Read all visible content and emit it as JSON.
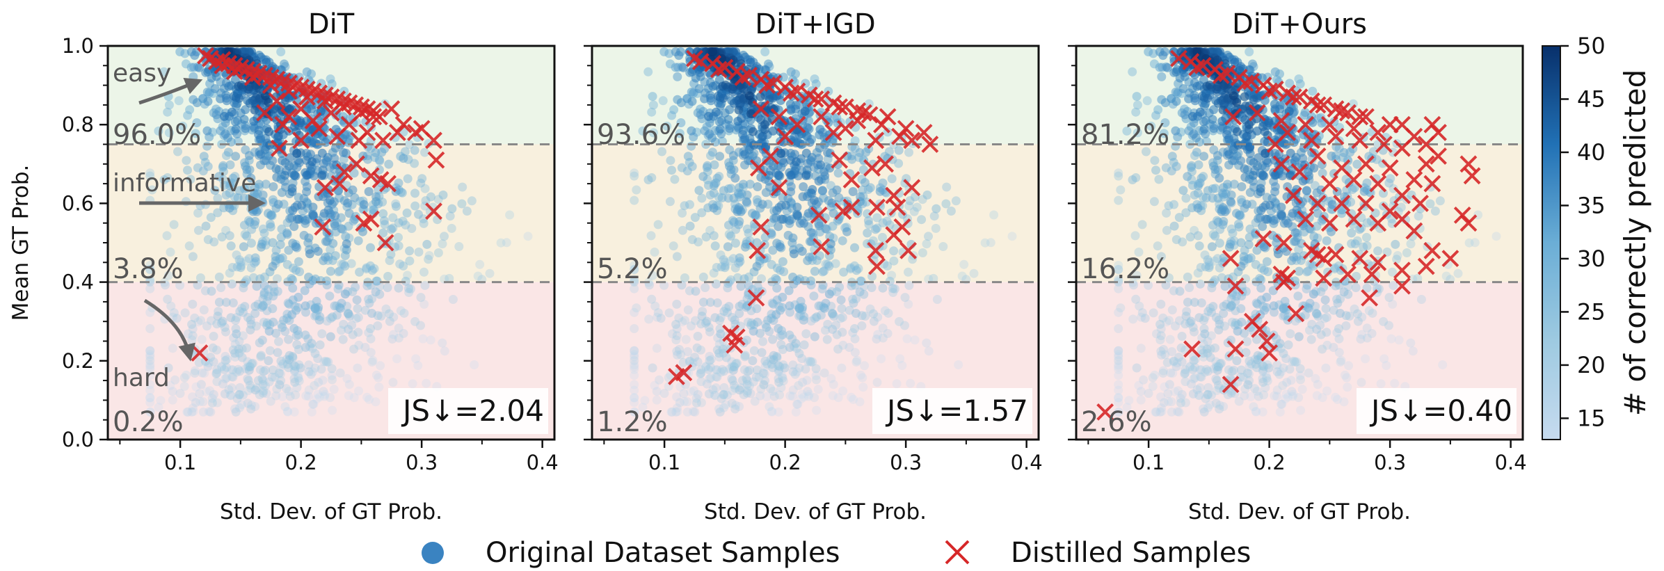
{
  "chart_data": {
    "type": "scatter",
    "panels": [
      {
        "title": "DiT",
        "xlabel": "Std. Dev. of GT Prob.",
        "ylabel": "Mean GT Prob.",
        "xlim": [
          0.04,
          0.41
        ],
        "ylim": [
          0.0,
          1.0
        ],
        "xticks": [
          "0.1",
          "0.2",
          "0.3",
          "0.4"
        ],
        "yticks": [
          "0.0",
          "0.2",
          "0.4",
          "0.6",
          "0.8",
          "1.0"
        ],
        "thresholds": [
          0.4,
          0.75
        ],
        "region_labels": {
          "easy": "easy",
          "informative": "informative",
          "hard": "hard"
        },
        "percentages": {
          "easy": "96.0%",
          "informative": "3.8%",
          "hard": "0.2%"
        },
        "js_label": "JS↓=2.04",
        "distilled_points": [
          [
            0.121,
            0.975
          ],
          [
            0.125,
            0.968
          ],
          [
            0.13,
            0.96
          ],
          [
            0.135,
            0.965
          ],
          [
            0.14,
            0.955
          ],
          [
            0.145,
            0.95
          ],
          [
            0.15,
            0.945
          ],
          [
            0.155,
            0.94
          ],
          [
            0.16,
            0.935
          ],
          [
            0.165,
            0.93
          ],
          [
            0.17,
            0.925
          ],
          [
            0.175,
            0.92
          ],
          [
            0.18,
            0.915
          ],
          [
            0.185,
            0.91
          ],
          [
            0.19,
            0.905
          ],
          [
            0.195,
            0.9
          ],
          [
            0.2,
            0.895
          ],
          [
            0.205,
            0.89
          ],
          [
            0.21,
            0.885
          ],
          [
            0.215,
            0.88
          ],
          [
            0.22,
            0.875
          ],
          [
            0.225,
            0.87
          ],
          [
            0.23,
            0.865
          ],
          [
            0.235,
            0.86
          ],
          [
            0.24,
            0.855
          ],
          [
            0.245,
            0.85
          ],
          [
            0.25,
            0.845
          ],
          [
            0.255,
            0.84
          ],
          [
            0.26,
            0.835
          ],
          [
            0.135,
            0.95
          ],
          [
            0.145,
            0.935
          ],
          [
            0.16,
            0.92
          ],
          [
            0.175,
            0.9
          ],
          [
            0.19,
            0.885
          ],
          [
            0.205,
            0.87
          ],
          [
            0.22,
            0.86
          ],
          [
            0.235,
            0.845
          ],
          [
            0.25,
            0.83
          ],
          [
            0.265,
            0.82
          ],
          [
            0.17,
            0.83
          ],
          [
            0.18,
            0.86
          ],
          [
            0.19,
            0.82
          ],
          [
            0.2,
            0.84
          ],
          [
            0.185,
            0.8
          ],
          [
            0.21,
            0.81
          ],
          [
            0.225,
            0.83
          ],
          [
            0.24,
            0.8
          ],
          [
            0.26,
            0.82
          ],
          [
            0.275,
            0.84
          ],
          [
            0.285,
            0.8
          ],
          [
            0.255,
            0.78
          ],
          [
            0.23,
            0.77
          ],
          [
            0.215,
            0.79
          ],
          [
            0.268,
            0.76
          ],
          [
            0.248,
            0.76
          ],
          [
            0.182,
            0.74
          ],
          [
            0.2,
            0.76
          ],
          [
            0.295,
            0.78
          ],
          [
            0.31,
            0.76
          ],
          [
            0.3,
            0.79
          ],
          [
            0.28,
            0.78
          ],
          [
            0.22,
            0.64
          ],
          [
            0.232,
            0.65
          ],
          [
            0.236,
            0.68
          ],
          [
            0.258,
            0.67
          ],
          [
            0.266,
            0.66
          ],
          [
            0.272,
            0.65
          ],
          [
            0.218,
            0.54
          ],
          [
            0.252,
            0.55
          ],
          [
            0.258,
            0.56
          ],
          [
            0.27,
            0.5
          ],
          [
            0.31,
            0.58
          ],
          [
            0.312,
            0.71
          ],
          [
            0.246,
            0.7
          ],
          [
            0.116,
            0.22
          ]
        ]
      },
      {
        "title": "DiT+IGD",
        "xlabel": "Std. Dev. of GT Prob.",
        "xlim": [
          0.04,
          0.41
        ],
        "ylim": [
          0.0,
          1.0
        ],
        "xticks": [
          "0.1",
          "0.2",
          "0.3",
          "0.4"
        ],
        "thresholds": [
          0.4,
          0.75
        ],
        "percentages": {
          "easy": "93.6%",
          "informative": "5.2%",
          "hard": "1.2%"
        },
        "js_label": "JS↓=1.57",
        "distilled_points": [
          [
            0.125,
            0.968
          ],
          [
            0.13,
            0.96
          ],
          [
            0.14,
            0.955
          ],
          [
            0.15,
            0.945
          ],
          [
            0.16,
            0.935
          ],
          [
            0.17,
            0.925
          ],
          [
            0.18,
            0.915
          ],
          [
            0.19,
            0.905
          ],
          [
            0.2,
            0.895
          ],
          [
            0.21,
            0.885
          ],
          [
            0.22,
            0.875
          ],
          [
            0.23,
            0.865
          ],
          [
            0.24,
            0.855
          ],
          [
            0.25,
            0.845
          ],
          [
            0.26,
            0.835
          ],
          [
            0.27,
            0.825
          ],
          [
            0.145,
            0.94
          ],
          [
            0.165,
            0.92
          ],
          [
            0.185,
            0.9
          ],
          [
            0.205,
            0.88
          ],
          [
            0.225,
            0.865
          ],
          [
            0.245,
            0.845
          ],
          [
            0.265,
            0.83
          ],
          [
            0.285,
            0.82
          ],
          [
            0.18,
            0.84
          ],
          [
            0.195,
            0.82
          ],
          [
            0.21,
            0.8
          ],
          [
            0.23,
            0.82
          ],
          [
            0.25,
            0.79
          ],
          [
            0.26,
            0.81
          ],
          [
            0.28,
            0.8
          ],
          [
            0.3,
            0.79
          ],
          [
            0.305,
            0.76
          ],
          [
            0.315,
            0.78
          ],
          [
            0.32,
            0.75
          ],
          [
            0.295,
            0.77
          ],
          [
            0.275,
            0.76
          ],
          [
            0.24,
            0.78
          ],
          [
            0.2,
            0.77
          ],
          [
            0.178,
            0.69
          ],
          [
            0.188,
            0.72
          ],
          [
            0.195,
            0.64
          ],
          [
            0.245,
            0.71
          ],
          [
            0.255,
            0.66
          ],
          [
            0.272,
            0.69
          ],
          [
            0.283,
            0.7
          ],
          [
            0.305,
            0.64
          ],
          [
            0.18,
            0.54
          ],
          [
            0.177,
            0.48
          ],
          [
            0.228,
            0.57
          ],
          [
            0.23,
            0.49
          ],
          [
            0.248,
            0.58
          ],
          [
            0.255,
            0.59
          ],
          [
            0.276,
            0.59
          ],
          [
            0.293,
            0.59
          ],
          [
            0.297,
            0.54
          ],
          [
            0.29,
            0.52
          ],
          [
            0.302,
            0.48
          ],
          [
            0.275,
            0.48
          ],
          [
            0.276,
            0.44
          ],
          [
            0.29,
            0.62
          ],
          [
            0.176,
            0.36
          ],
          [
            0.155,
            0.27
          ],
          [
            0.16,
            0.26
          ],
          [
            0.158,
            0.24
          ],
          [
            0.11,
            0.16
          ],
          [
            0.116,
            0.17
          ]
        ]
      },
      {
        "title": "DiT+Ours",
        "xlabel": "Std. Dev. of GT Prob.",
        "xlim": [
          0.04,
          0.41
        ],
        "ylim": [
          0.0,
          1.0
        ],
        "xticks": [
          "0.1",
          "0.2",
          "0.3",
          "0.4"
        ],
        "thresholds": [
          0.4,
          0.75
        ],
        "percentages": {
          "easy": "81.2%",
          "informative": "16.2%",
          "hard": "2.6%"
        },
        "js_label": "JS↓=0.40",
        "distilled_points": [
          [
            0.125,
            0.968
          ],
          [
            0.135,
            0.96
          ],
          [
            0.145,
            0.95
          ],
          [
            0.155,
            0.94
          ],
          [
            0.165,
            0.93
          ],
          [
            0.175,
            0.92
          ],
          [
            0.185,
            0.91
          ],
          [
            0.195,
            0.9
          ],
          [
            0.205,
            0.89
          ],
          [
            0.215,
            0.88
          ],
          [
            0.225,
            0.87
          ],
          [
            0.235,
            0.86
          ],
          [
            0.245,
            0.85
          ],
          [
            0.255,
            0.84
          ],
          [
            0.265,
            0.83
          ],
          [
            0.275,
            0.82
          ],
          [
            0.14,
            0.945
          ],
          [
            0.16,
            0.925
          ],
          [
            0.18,
            0.905
          ],
          [
            0.2,
            0.885
          ],
          [
            0.22,
            0.87
          ],
          [
            0.24,
            0.85
          ],
          [
            0.26,
            0.835
          ],
          [
            0.28,
            0.82
          ],
          [
            0.3,
            0.8
          ],
          [
            0.17,
            0.82
          ],
          [
            0.19,
            0.83
          ],
          [
            0.21,
            0.81
          ],
          [
            0.23,
            0.8
          ],
          [
            0.25,
            0.8
          ],
          [
            0.27,
            0.79
          ],
          [
            0.29,
            0.78
          ],
          [
            0.31,
            0.8
          ],
          [
            0.32,
            0.77
          ],
          [
            0.335,
            0.8
          ],
          [
            0.34,
            0.78
          ],
          [
            0.33,
            0.75
          ],
          [
            0.31,
            0.74
          ],
          [
            0.295,
            0.75
          ],
          [
            0.275,
            0.76
          ],
          [
            0.255,
            0.77
          ],
          [
            0.235,
            0.76
          ],
          [
            0.215,
            0.78
          ],
          [
            0.205,
            0.75
          ],
          [
            0.21,
            0.7
          ],
          [
            0.225,
            0.68
          ],
          [
            0.24,
            0.72
          ],
          [
            0.26,
            0.69
          ],
          [
            0.28,
            0.7
          ],
          [
            0.3,
            0.69
          ],
          [
            0.32,
            0.66
          ],
          [
            0.33,
            0.7
          ],
          [
            0.34,
            0.72
          ],
          [
            0.335,
            0.65
          ],
          [
            0.365,
            0.7
          ],
          [
            0.368,
            0.67
          ],
          [
            0.25,
            0.65
          ],
          [
            0.27,
            0.66
          ],
          [
            0.29,
            0.65
          ],
          [
            0.31,
            0.62
          ],
          [
            0.325,
            0.6
          ],
          [
            0.3,
            0.58
          ],
          [
            0.28,
            0.6
          ],
          [
            0.26,
            0.6
          ],
          [
            0.24,
            0.6
          ],
          [
            0.22,
            0.62
          ],
          [
            0.23,
            0.56
          ],
          [
            0.25,
            0.55
          ],
          [
            0.27,
            0.56
          ],
          [
            0.29,
            0.55
          ],
          [
            0.31,
            0.56
          ],
          [
            0.32,
            0.53
          ],
          [
            0.36,
            0.57
          ],
          [
            0.365,
            0.55
          ],
          [
            0.195,
            0.51
          ],
          [
            0.212,
            0.5
          ],
          [
            0.235,
            0.48
          ],
          [
            0.24,
            0.47
          ],
          [
            0.245,
            0.46
          ],
          [
            0.255,
            0.47
          ],
          [
            0.275,
            0.46
          ],
          [
            0.29,
            0.45
          ],
          [
            0.265,
            0.42
          ],
          [
            0.285,
            0.42
          ],
          [
            0.31,
            0.43
          ],
          [
            0.33,
            0.44
          ],
          [
            0.335,
            0.48
          ],
          [
            0.35,
            0.46
          ],
          [
            0.21,
            0.42
          ],
          [
            0.245,
            0.41
          ],
          [
            0.168,
            0.46
          ],
          [
            0.172,
            0.39
          ],
          [
            0.212,
            0.4
          ],
          [
            0.215,
            0.41
          ],
          [
            0.222,
            0.32
          ],
          [
            0.31,
            0.39
          ],
          [
            0.283,
            0.36
          ],
          [
            0.186,
            0.3
          ],
          [
            0.192,
            0.28
          ],
          [
            0.198,
            0.25
          ],
          [
            0.2,
            0.22
          ],
          [
            0.136,
            0.23
          ],
          [
            0.172,
            0.23
          ],
          [
            0.168,
            0.14
          ],
          [
            0.064,
            0.07
          ]
        ]
      }
    ],
    "colorbar": {
      "label": "# of correctly predicted",
      "range": [
        13,
        50
      ],
      "ticks": [
        "15",
        "20",
        "25",
        "30",
        "35",
        "40",
        "45",
        "50"
      ]
    },
    "legend": {
      "placement": "bottom-center",
      "items": [
        "Original Dataset Samples",
        "Distilled Samples"
      ]
    },
    "colors": {
      "easy_bg": "#ecf5e8",
      "informative_bg": "#f8f0de",
      "hard_bg": "#fae6e6",
      "distilled": "#d62728",
      "threshold": "#888888"
    }
  }
}
